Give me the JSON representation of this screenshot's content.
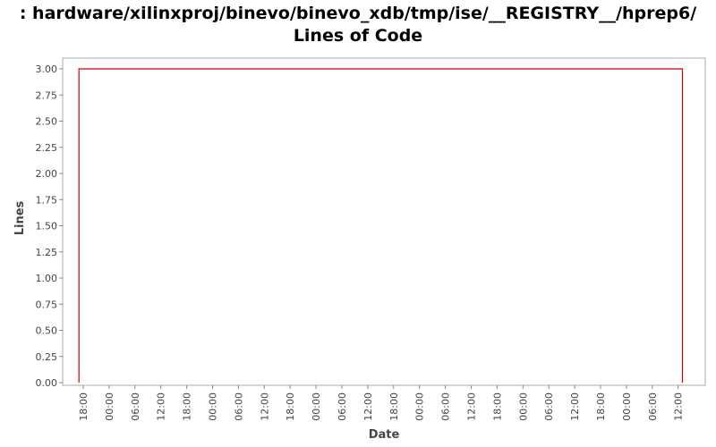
{
  "title_line1": ": hardware/xilinxproj/binevo/binevo_xdb/tmp/ise/__REGISTRY__/hprep6/",
  "title_line2": "Lines of Code",
  "chart_data": {
    "type": "line",
    "title": ": hardware/xilinxproj/binevo/binevo_xdb/tmp/ise/__REGISTRY__/hprep6/ Lines of Code",
    "xlabel": "Date",
    "ylabel": "Lines",
    "ylim": [
      0,
      3.0
    ],
    "y_ticks": [
      "0.00",
      "0.25",
      "0.50",
      "0.75",
      "1.00",
      "1.25",
      "1.50",
      "1.75",
      "2.00",
      "2.25",
      "2.50",
      "2.75",
      "3.00"
    ],
    "x_ticks": [
      "18:00",
      "00:00",
      "06:00",
      "12:00",
      "18:00",
      "00:00",
      "06:00",
      "12:00",
      "18:00",
      "00:00",
      "06:00",
      "12:00",
      "18:00",
      "00:00",
      "06:00",
      "12:00",
      "18:00",
      "00:00",
      "06:00",
      "12:00",
      "18:00",
      "00:00",
      "06:00",
      "12:00"
    ],
    "series": [
      {
        "color": "#cc0000",
        "points": [
          {
            "x": "17:00",
            "y": 0
          },
          {
            "x": "17:00",
            "y": 3
          },
          {
            "x": "13:00",
            "y": 3
          },
          {
            "x": "13:00",
            "y": 0
          }
        ]
      }
    ],
    "grid": false
  }
}
